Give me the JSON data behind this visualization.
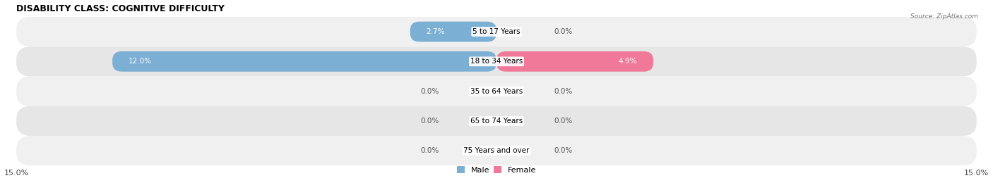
{
  "title": "DISABILITY CLASS: COGNITIVE DIFFICULTY",
  "source": "Source: ZipAtlas.com",
  "categories": [
    "5 to 17 Years",
    "18 to 34 Years",
    "35 to 64 Years",
    "65 to 74 Years",
    "75 Years and over"
  ],
  "male_values": [
    2.7,
    12.0,
    0.0,
    0.0,
    0.0
  ],
  "female_values": [
    0.0,
    4.9,
    0.0,
    0.0,
    0.0
  ],
  "max_val": 15.0,
  "male_color": "#7bafd4",
  "female_color": "#f07898",
  "row_colors": [
    "#f0f0f0",
    "#e6e6e6"
  ],
  "title_fontsize": 9,
  "label_fontsize": 7.5,
  "tick_fontsize": 8,
  "legend_fontsize": 8,
  "value_label_color_inside": "white",
  "value_label_color_outside": "#555555"
}
